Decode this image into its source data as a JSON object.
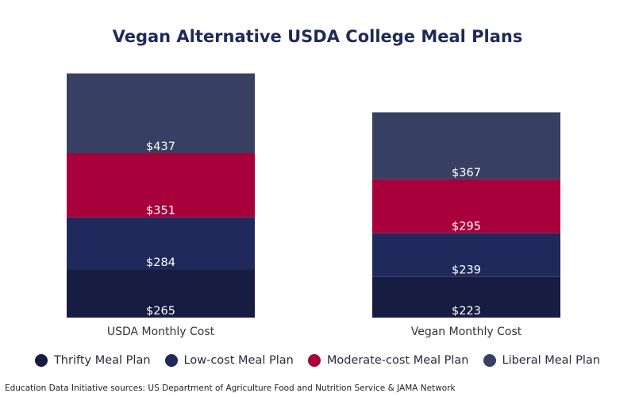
{
  "chart_data": {
    "type": "bar",
    "stacked": true,
    "title": "Vegan Alternative USDA College Meal Plans",
    "categories": [
      "USDA Monthly Cost",
      "Vegan Monthly Cost"
    ],
    "series": [
      {
        "name": "Thrifty Meal Plan",
        "color": "#161c42",
        "values": [
          265,
          223
        ],
        "labels": [
          "$265",
          "$223"
        ]
      },
      {
        "name": "Low-cost Meal Plan",
        "color": "#20295c",
        "values": [
          284,
          239
        ],
        "labels": [
          "$284",
          "$239"
        ]
      },
      {
        "name": "Moderate-cost Meal Plan",
        "color": "#a8003b",
        "values": [
          351,
          295
        ],
        "labels": [
          "$351",
          "$295"
        ]
      },
      {
        "name": "Liberal Meal Plan",
        "color": "#373f63",
        "values": [
          437,
          367
        ],
        "labels": [
          "$437",
          "$367"
        ]
      }
    ],
    "legend_position": "bottom",
    "grid": false
  },
  "source": "Education Data Initiative sources: US Department of Agriculture Food and Nutrition Service & JAMA Network"
}
